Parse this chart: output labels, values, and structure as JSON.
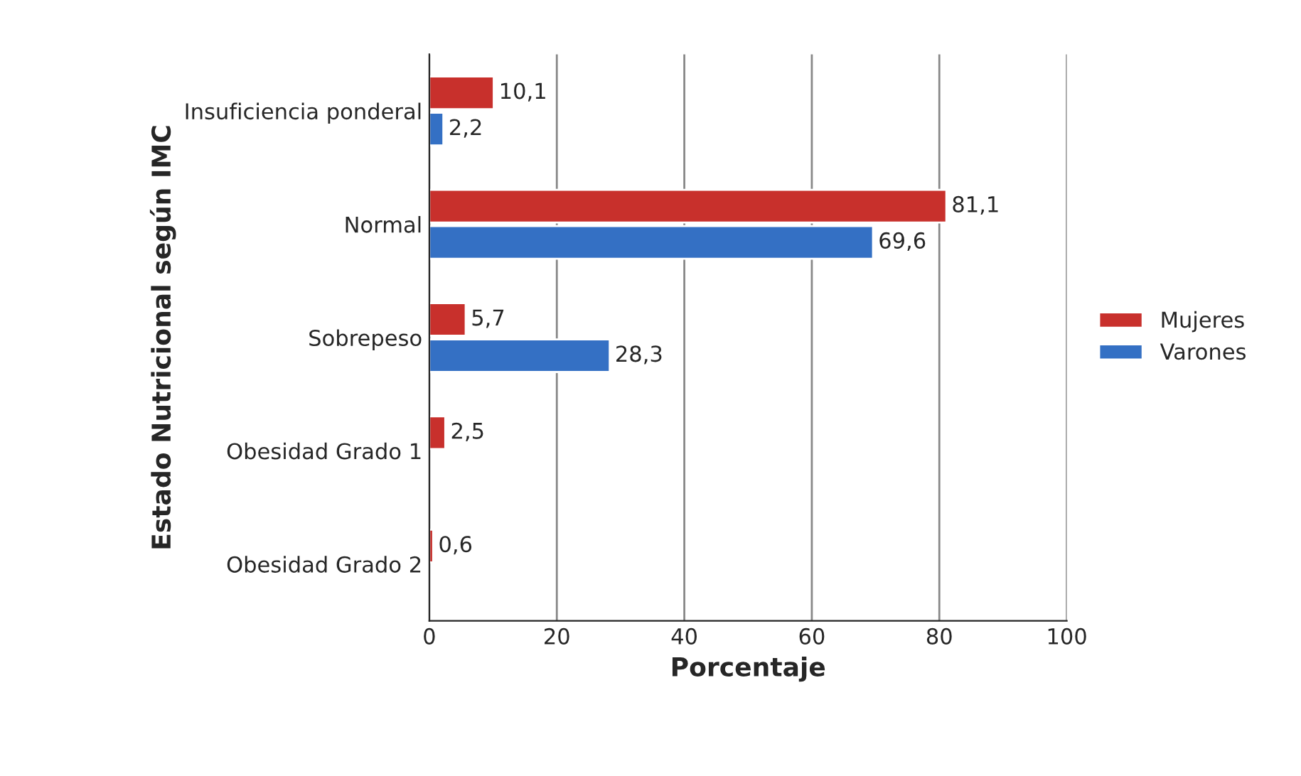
{
  "chart_data": {
    "type": "bar",
    "orientation": "horizontal",
    "xlabel": "Porcentaje",
    "ylabel": "Estado Nutricional según IMC",
    "categories": [
      "Insuficiencia ponderal",
      "Normal",
      "Sobrepeso",
      "Obesidad Grado 1",
      "Obesidad Grado 2"
    ],
    "series": [
      {
        "name": "Mujeres",
        "color": "#c8302c",
        "values": [
          10.1,
          81.1,
          5.7,
          2.5,
          0.6
        ],
        "value_labels": [
          "10,1",
          "81,1",
          "5,7",
          "2,5",
          "0,6"
        ]
      },
      {
        "name": "Varones",
        "color": "#3470c4",
        "values": [
          2.2,
          69.6,
          28.3,
          null,
          null
        ],
        "value_labels": [
          "2,2",
          "69,6",
          "28,3",
          null,
          null
        ]
      }
    ],
    "xlim": [
      0,
      100
    ],
    "xticks": [
      0,
      20,
      40,
      60,
      80,
      100
    ],
    "grid": "x",
    "legend": "right"
  }
}
